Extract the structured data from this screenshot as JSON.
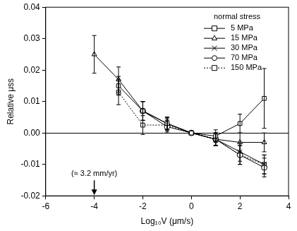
{
  "chart_data": {
    "type": "line",
    "x_label": "Log₁₀V (μm/s)",
    "y_label": "Relative μss",
    "legend_title": "normal stress",
    "legend": "top-right",
    "xlim": [
      -6,
      4
    ],
    "xticks": [
      -6,
      -4,
      -2,
      0,
      2,
      4
    ],
    "ylim": [
      -0.02,
      0.04
    ],
    "yticks": [
      {
        "value": -0.02,
        "label": "-0.02"
      },
      {
        "value": -0.01,
        "label": "-0.01"
      },
      {
        "value": 0,
        "label": "0.00"
      },
      {
        "value": 0.01,
        "label": "0.01"
      },
      {
        "value": 0.02,
        "label": "0.02"
      },
      {
        "value": 0.03,
        "label": "0.03"
      },
      {
        "value": 0.04,
        "label": "0.04"
      }
    ],
    "grid": false,
    "annotations": [
      {
        "text": "(≈ 3.2 mm/yr)",
        "x": -4
      }
    ],
    "series": [
      {
        "name": "5 MPa",
        "color": "#000000",
        "marker": "square",
        "line_style": "solid",
        "x": [
          -3,
          -2,
          -1,
          0,
          1,
          2,
          3
        ],
        "values": [
          0.015,
          0.007,
          0.003,
          0,
          -0.001,
          0.003,
          0.011
        ],
        "errors": [
          0.003,
          0.003,
          0.002,
          0,
          0.002,
          0.003,
          0.0095
        ]
      },
      {
        "name": "15 MPa",
        "color": "#000000",
        "marker": "triangle",
        "line_style": "solid",
        "x": [
          -4,
          -3,
          -2,
          -1,
          0,
          1,
          2,
          3
        ],
        "values": [
          0.025,
          0.017,
          0.007,
          0.003,
          0,
          -0.002,
          -0.003,
          -0.003
        ],
        "errors": [
          0.006,
          0.004,
          0.003,
          0.002,
          0,
          0.002,
          0.003,
          0.003
        ]
      },
      {
        "name": "30 MPa",
        "color": "#000000",
        "marker": "cross",
        "line_style": "solid",
        "x": [
          -2,
          -1,
          0,
          1,
          2,
          3
        ],
        "values": [
          0.007,
          0.003,
          0,
          -0.002,
          -0.006,
          -0.01
        ],
        "errors": [
          0.003,
          0.002,
          0,
          0.002,
          0.003,
          0.003
        ]
      },
      {
        "name": "70 MPa",
        "color": "#000000",
        "marker": "circle",
        "line_style": "solid",
        "x": [
          -2,
          -1,
          0,
          1,
          2,
          3
        ],
        "values": [
          0.007,
          0.002,
          0,
          -0.002,
          -0.007,
          -0.011
        ],
        "errors": [
          0.003,
          0.002,
          0,
          0.002,
          0.003,
          0.003
        ]
      },
      {
        "name": "150 MPa",
        "color": "#000000",
        "marker": "square",
        "line_style": "dotted",
        "x": [
          -3,
          -2,
          -1,
          0,
          1,
          2,
          3
        ],
        "values": [
          0.013,
          0.0025,
          0.0025,
          0,
          -0.002,
          -0.007,
          -0.01
        ],
        "errors": [
          0.004,
          0.003,
          0.002,
          0,
          0.002,
          0.003,
          0.003
        ]
      }
    ]
  }
}
